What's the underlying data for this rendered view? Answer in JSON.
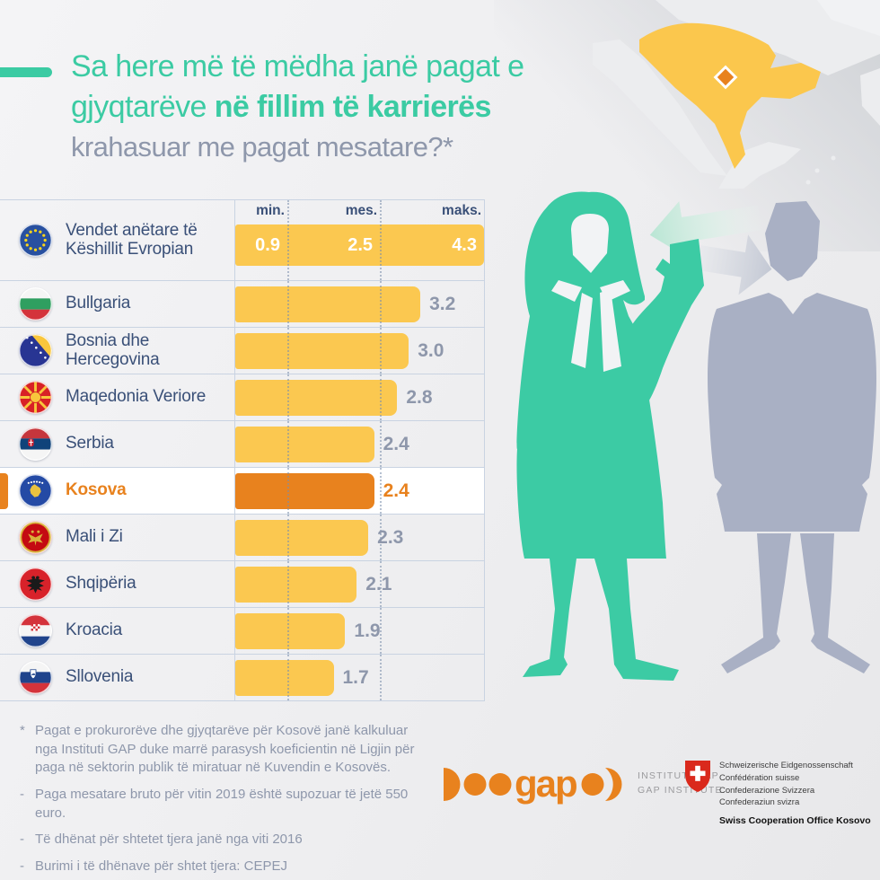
{
  "header": {
    "title_line1": "Sa here më të mëdha janë pagat e",
    "title_line2_regular": "gjyqtarëve ",
    "title_line2_bold": "në fillim të karrierës",
    "subtitle": "krahasuar me pagat mesatare?*"
  },
  "chart_data": {
    "type": "bar",
    "title": "Sa here më të mëdha janë pagat e gjyqtarëve në fillim të karrierës krahasuar me pagat mesatare?*",
    "column_headers": [
      "min.",
      "mes.",
      "maks."
    ],
    "xmax": 4.3,
    "guide_values": [
      0.9,
      2.5
    ],
    "summary_row": {
      "flag": "eu",
      "label": "Vendet anëtare të Këshillit Evropian",
      "min": 0.9,
      "mes": 2.5,
      "maks": 4.3
    },
    "categories": [
      "Bullgaria",
      "Bosnia dhe Hercegovina",
      "Maqedonia Veriore",
      "Serbia",
      "Kosova",
      "Mali i Zi",
      "Shqipëria",
      "Kroacia",
      "Sllovenia"
    ],
    "values": [
      3.2,
      3.0,
      2.8,
      2.4,
      2.4,
      2.3,
      2.1,
      1.9,
      1.7
    ],
    "rows": [
      {
        "flag": "bg",
        "label": "Bullgaria",
        "value": 3.2,
        "highlight": false
      },
      {
        "flag": "ba",
        "label": "Bosnia dhe Hercegovina",
        "value": 3.0,
        "highlight": false
      },
      {
        "flag": "mk",
        "label": "Maqedonia Veriore",
        "value": 2.8,
        "highlight": false
      },
      {
        "flag": "rs",
        "label": "Serbia",
        "value": 2.4,
        "highlight": false
      },
      {
        "flag": "xk",
        "label": "Kosova",
        "value": 2.4,
        "highlight": true
      },
      {
        "flag": "me",
        "label": "Mali i Zi",
        "value": 2.3,
        "highlight": false
      },
      {
        "flag": "al",
        "label": "Shqipëria",
        "value": 2.1,
        "highlight": false
      },
      {
        "flag": "hr",
        "label": "Kroacia",
        "value": 1.9,
        "highlight": false
      },
      {
        "flag": "si",
        "label": "Sllovenia",
        "value": 1.7,
        "highlight": false
      }
    ],
    "highlight": "Kosova",
    "legend": "none",
    "grid": "dotted vertical guides at min and mes values"
  },
  "footnotes": {
    "items": [
      {
        "marker": "*",
        "text": "Pagat e prokurorëve dhe gjyqtarëve për Kosovë janë kalkuluar nga Instituti GAP duke marrë parasysh koeficientin në Ligjin për paga në sektorin publik të miratuar në Kuvendin e Kosovës."
      },
      {
        "marker": "-",
        "text": "Paga mesatare bruto për vitin 2019 është supozuar të jetë 550 euro."
      },
      {
        "marker": "-",
        "text": "Të dhënat për shtetet tjera janë nga viti 2016"
      },
      {
        "marker": "-",
        "text": "Burimi i të dhënave për shtet tjera: CEPEJ"
      }
    ]
  },
  "logos": {
    "gap": {
      "wordmark": "gap",
      "line1": "INSTITUTI GAP",
      "line2": "GAP INSTITUTE"
    },
    "swiss": {
      "lines": [
        "Schweizerische Eidgenossenschaft",
        "Confédération suisse",
        "Confederazione Svizzera",
        "Confederaziun svizra"
      ],
      "office": "Swiss Cooperation Office Kosovo"
    }
  },
  "map": {
    "marker": "kosovo-location-diamond"
  },
  "colors": {
    "teal": "#3BCBA3",
    "yellow": "#FBC850",
    "orange": "#E8821E",
    "navy": "#3A5078",
    "muted_text": "#8E97AB",
    "figure_gray": "#A9B0C4",
    "line": "#C9D3E2",
    "background": "#F0F0F2"
  }
}
